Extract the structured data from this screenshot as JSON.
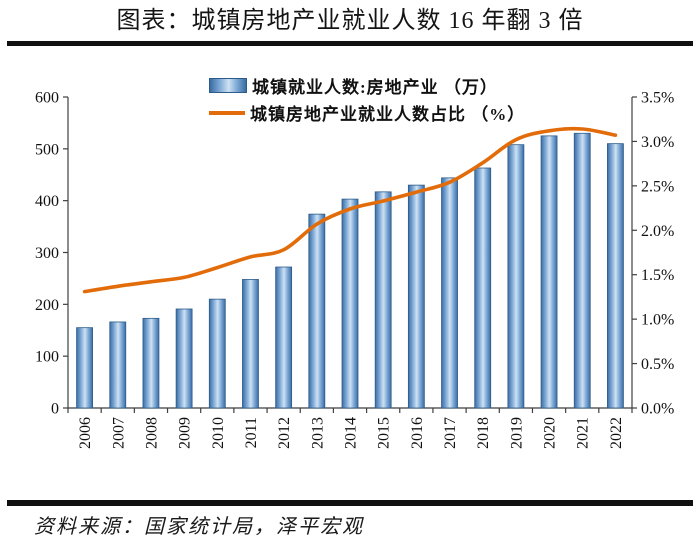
{
  "title": "图表：城镇房地产业就业人数 16 年翻 3 倍",
  "source": "资料来源：国家统计局，泽平宏观",
  "legend": {
    "bar_label": "城镇就业人数:房地产业 （万）",
    "line_label": "城镇房地产业就业人数占比 （%）"
  },
  "colors": {
    "bar_border": "#2E5C8A",
    "bar_dark": "#3A6DA5",
    "bar_mid": "#86AFDA",
    "bar_light": "#CFE1F2",
    "line": "#E36C0A",
    "axis": "#3F3F3F",
    "text": "#111111",
    "rule": "#101010"
  },
  "chart_data": {
    "type": "bar+line",
    "title": "图表：城镇房地产业就业人数 16 年翻 3 倍",
    "categories": [
      "2006",
      "2007",
      "2008",
      "2009",
      "2010",
      "2011",
      "2012",
      "2013",
      "2014",
      "2015",
      "2016",
      "2017",
      "2018",
      "2019",
      "2020",
      "2021",
      "2022"
    ],
    "series": [
      {
        "name": "城镇就业人数:房地产业 （万）",
        "type": "bar",
        "axis": "left",
        "values": [
          155,
          166,
          173,
          191,
          210,
          248,
          272,
          374,
          403,
          417,
          430,
          444,
          463,
          508,
          525,
          530,
          510
        ]
      },
      {
        "name": "城镇房地产业就业人数占比 （%）",
        "type": "line",
        "axis": "right",
        "values": [
          1.31,
          1.37,
          1.42,
          1.47,
          1.58,
          1.7,
          1.78,
          2.07,
          2.24,
          2.33,
          2.43,
          2.54,
          2.76,
          3.02,
          3.12,
          3.14,
          3.07
        ]
      }
    ],
    "left_axis": {
      "min": 0,
      "max": 600,
      "step": 100,
      "tick_labels": [
        "0",
        "100",
        "200",
        "300",
        "400",
        "500",
        "600"
      ]
    },
    "right_axis": {
      "min": 0,
      "max": 3.5,
      "step": 0.5,
      "tick_labels": [
        "0.0%",
        "0.5%",
        "1.0%",
        "1.5%",
        "2.0%",
        "2.5%",
        "3.0%",
        "3.5%"
      ]
    },
    "grid": false,
    "legend_position": "top-center",
    "x_tick_label_rotation": -90
  }
}
